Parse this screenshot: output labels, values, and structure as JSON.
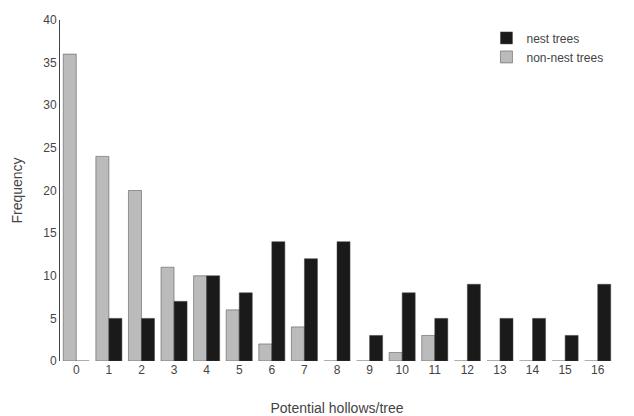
{
  "chart_data": {
    "type": "bar",
    "categories": [
      0,
      1,
      2,
      3,
      4,
      5,
      6,
      7,
      8,
      9,
      10,
      11,
      12,
      13,
      14,
      15,
      16
    ],
    "series": [
      {
        "name": "non-nest trees",
        "color": "#bbbbbb",
        "values": [
          36,
          24,
          20,
          11,
          10,
          6,
          2,
          4,
          0,
          0,
          1,
          3,
          0,
          0,
          0,
          0,
          0
        ]
      },
      {
        "name": "nest trees",
        "color": "#1a1a1a",
        "values": [
          0,
          5,
          5,
          7,
          10,
          8,
          14,
          12,
          14,
          3,
          8,
          5,
          9,
          5,
          5,
          3,
          9
        ]
      }
    ],
    "xlabel": "Potential hollows/tree",
    "ylabel": "Frequency",
    "ylim": [
      0,
      40
    ],
    "yticks": [
      0,
      5,
      10,
      15,
      20,
      25,
      30,
      35,
      40
    ],
    "grid": false,
    "legend": "upper right"
  }
}
